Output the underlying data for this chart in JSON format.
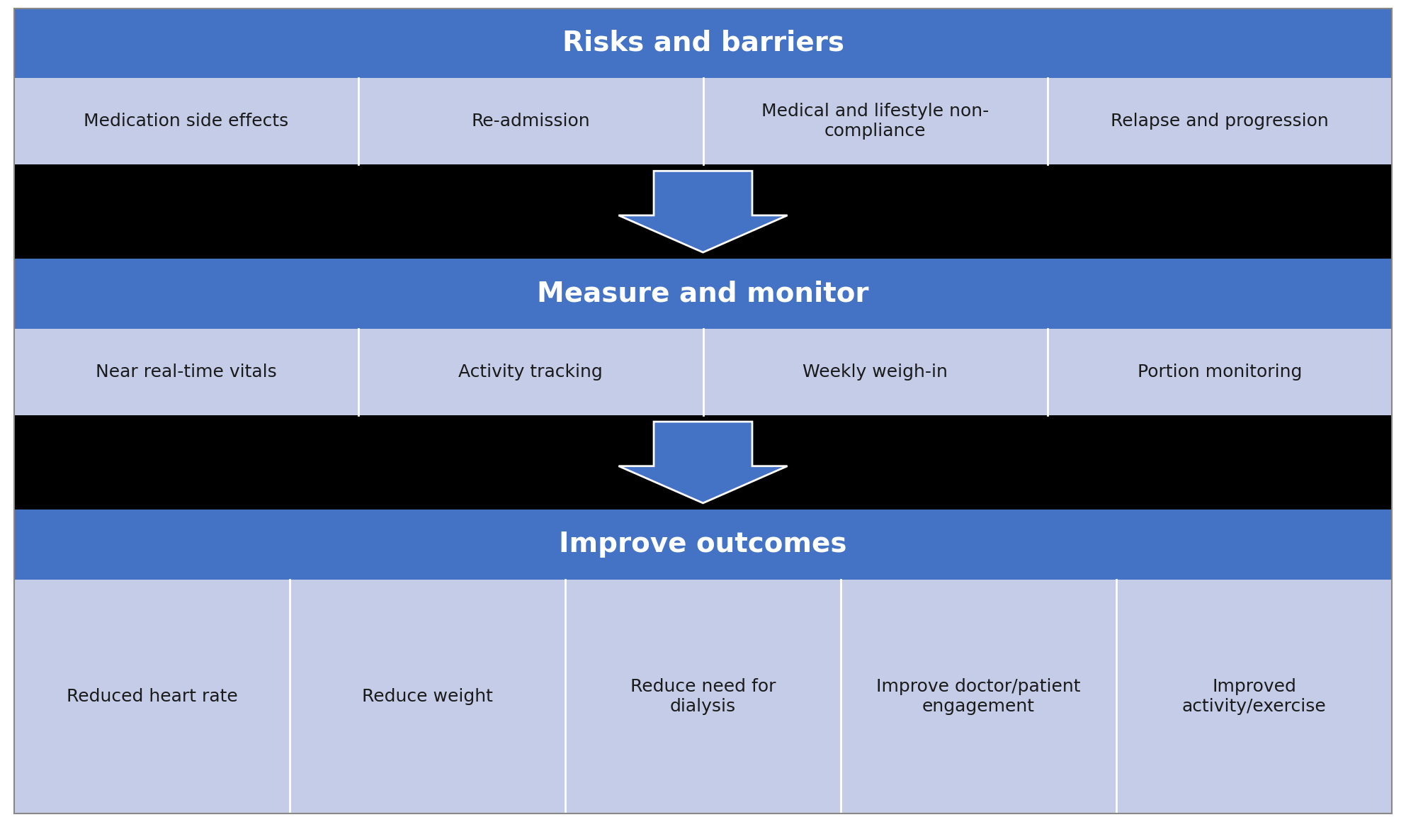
{
  "title1": "Risks and barriers",
  "title2": "Measure and monitor",
  "title3": "Improve outcomes",
  "section1_items": [
    "Medication side effects",
    "Re-admission",
    "Medical and lifestyle non-\ncompliance",
    "Relapse and progression"
  ],
  "section2_items": [
    "Near real-time vitals",
    "Activity tracking",
    "Weekly weigh-in",
    "Portion monitoring"
  ],
  "section3_items": [
    "Reduced heart rate",
    "Reduce weight",
    "Reduce need for\ndialysis",
    "Improve doctor/patient\nengagement",
    "Improved\nactivity/exercise"
  ],
  "header_color": "#4472C4",
  "subrow_color": "#C5CCE8",
  "arrow_color": "#4472C4",
  "black_band_color": "#000000",
  "white_color": "#FFFFFF",
  "dark_text_color": "#1a1a1a",
  "header_fontsize": 28,
  "item_fontsize": 18,
  "background_color": "#FFFFFF"
}
